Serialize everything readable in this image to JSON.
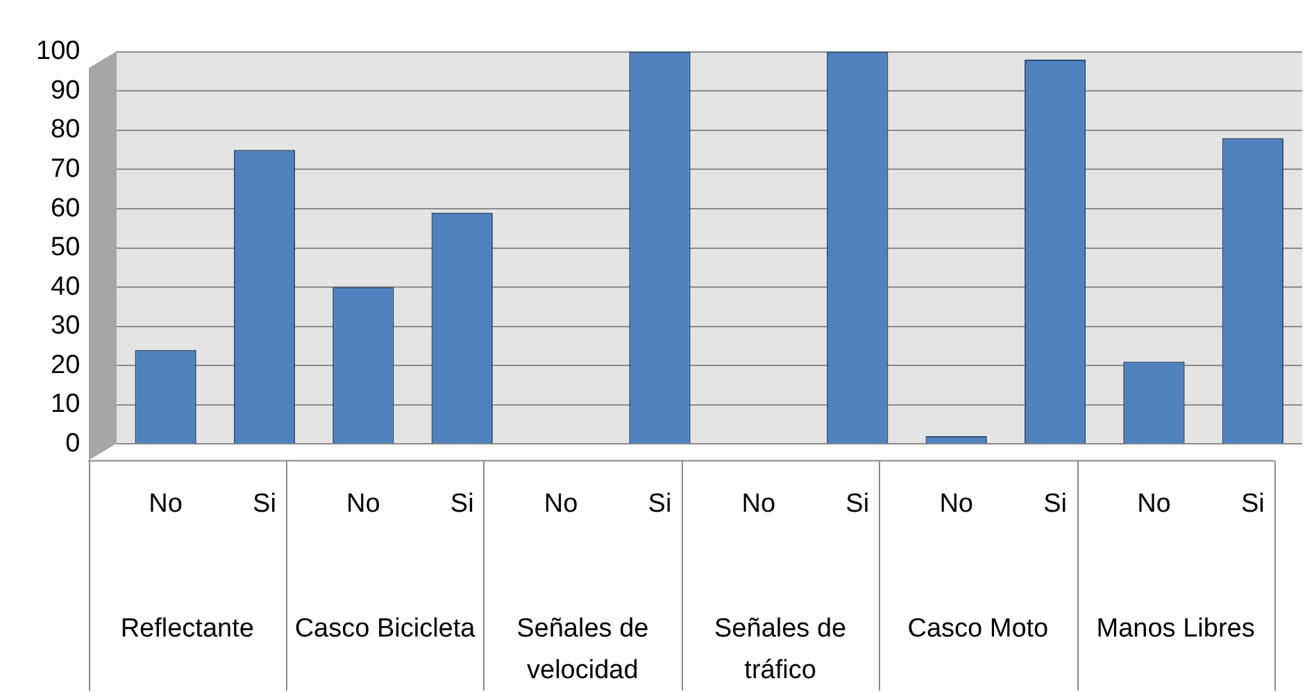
{
  "chart_data": {
    "type": "bar",
    "categories": [
      "No",
      "Si",
      "No",
      "Si",
      "No",
      "Si",
      "No",
      "Si",
      "No",
      "Si",
      "No",
      "Si"
    ],
    "values": [
      24,
      75,
      40,
      59,
      0,
      100,
      0,
      100,
      2,
      98,
      21,
      78
    ],
    "color": "#4f81bd",
    "ylim": [
      0,
      100
    ],
    "yticks": [
      0,
      10,
      20,
      30,
      40,
      50,
      60,
      70,
      80,
      90,
      100
    ],
    "grid": "y",
    "legend": false,
    "annotations": [
      "Reflectante",
      "Casco Bicicleta",
      "Señales de velocidad",
      "Señales de tráfico",
      "Casco Moto",
      "Manos Libres"
    ]
  }
}
